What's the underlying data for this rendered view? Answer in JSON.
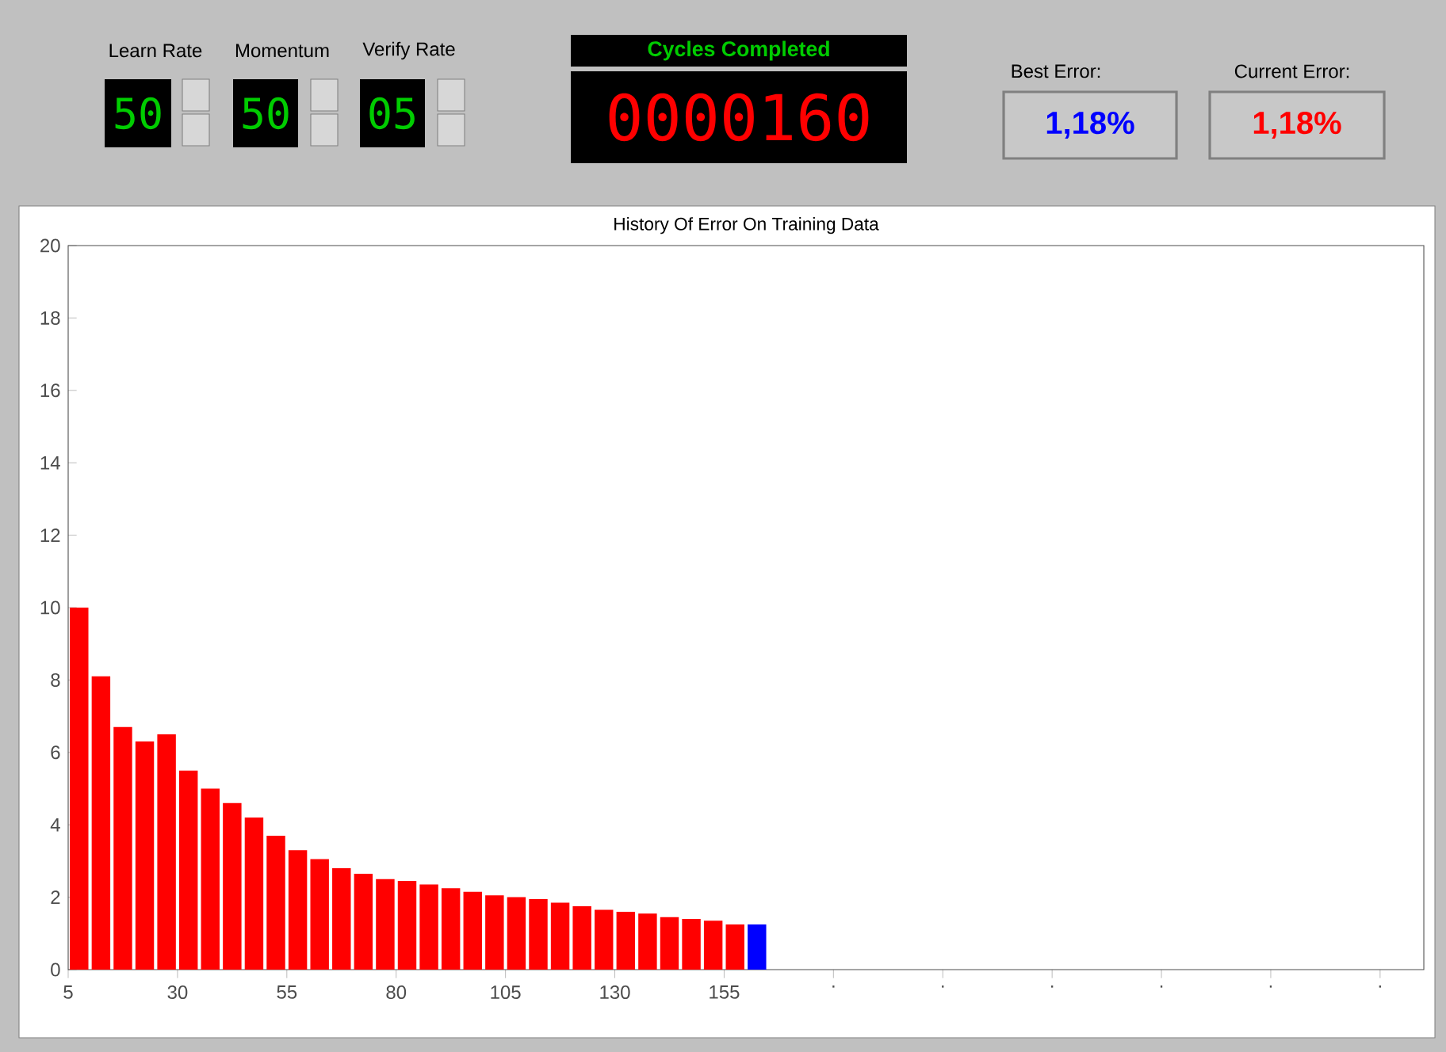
{
  "chart_data": {
    "type": "bar",
    "title": "History Of Error On Training Data",
    "x": [
      7.5,
      12.5,
      17.5,
      22.5,
      27.5,
      32.5,
      37.5,
      42.5,
      47.5,
      52.5,
      57.5,
      62.5,
      67.5,
      72.5,
      77.5,
      82.5,
      87.5,
      92.5,
      97.5,
      102.5,
      107.5,
      112.5,
      117.5,
      122.5,
      127.5,
      132.5,
      137.5,
      142.5,
      147.5,
      152.5,
      157.5,
      162.5
    ],
    "values": [
      10.0,
      8.1,
      6.7,
      6.3,
      6.5,
      5.5,
      5.0,
      4.6,
      4.2,
      3.7,
      3.3,
      3.05,
      2.8,
      2.65,
      2.5,
      2.45,
      2.35,
      2.25,
      2.15,
      2.05,
      2.0,
      1.95,
      1.85,
      1.75,
      1.65,
      1.6,
      1.55,
      1.45,
      1.4,
      1.35,
      1.25,
      1.25
    ],
    "colors": [
      "#ff0000",
      "#ff0000",
      "#ff0000",
      "#ff0000",
      "#ff0000",
      "#ff0000",
      "#ff0000",
      "#ff0000",
      "#ff0000",
      "#ff0000",
      "#ff0000",
      "#ff0000",
      "#ff0000",
      "#ff0000",
      "#ff0000",
      "#ff0000",
      "#ff0000",
      "#ff0000",
      "#ff0000",
      "#ff0000",
      "#ff0000",
      "#ff0000",
      "#ff0000",
      "#ff0000",
      "#ff0000",
      "#ff0000",
      "#ff0000",
      "#ff0000",
      "#ff0000",
      "#ff0000",
      "#ff0000",
      "#0000ff"
    ],
    "xlim": [
      5,
      315
    ],
    "xticks": [
      5,
      30,
      55,
      80,
      105,
      130,
      155,
      {
        "value": 180,
        "label": "."
      },
      {
        "value": 205,
        "label": "."
      },
      {
        "value": 230,
        "label": "."
      },
      {
        "value": 255,
        "label": "."
      },
      {
        "value": 280,
        "label": "."
      },
      {
        "value": 305,
        "label": "."
      }
    ],
    "ylim": [
      0,
      20
    ],
    "yticks": [
      0,
      2,
      4,
      6,
      8,
      10,
      12,
      14,
      16,
      18,
      20
    ],
    "grid": false,
    "annotations": [
      "Learn Rate",
      "Momentum",
      "Verify Rate",
      "50",
      "50",
      "05",
      "Cycles Completed",
      "0000160",
      "Best Error:",
      "Current Error:",
      "1,18%",
      "1,18%"
    ]
  }
}
